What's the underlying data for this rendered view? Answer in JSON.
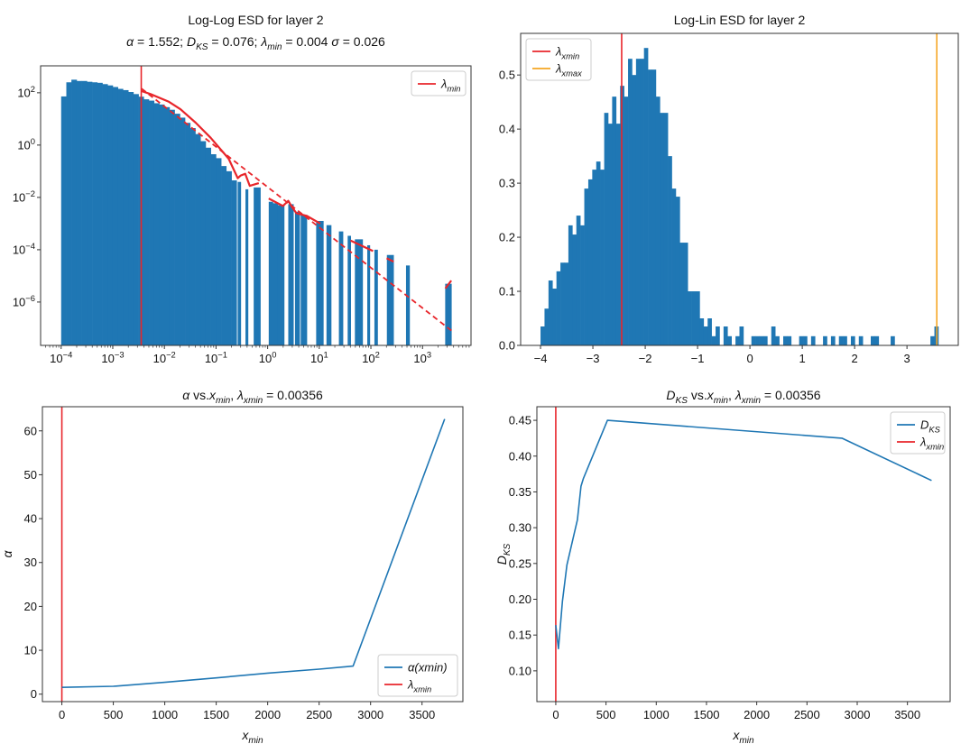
{
  "colors": {
    "blue": "#1f77b4",
    "red": "#e8262b",
    "orange": "#f5a623",
    "spine": "#333333"
  },
  "chart_data": [
    {
      "id": "loglog",
      "type": "bar",
      "title": [
        "Log-Log ESD for layer 2",
        "$α$ = 1.552; $D_{KS}$ = 0.076; $λ_{min}$ = 0.004 $σ$ = 0.026"
      ],
      "xscale": "log",
      "yscale": "log",
      "xlim": [
        4e-05,
        8700
      ],
      "ylim": [
        2.2e-08,
        1070
      ],
      "xticks": [
        0.0001,
        0.001,
        0.01,
        0.1,
        1,
        10,
        100,
        1000
      ],
      "xticklabels": [
        "10^{−4}",
        "10^{−3}",
        "10^{−2}",
        "10^{−1}",
        "10^{0}",
        "10^{1}",
        "10^{2}",
        "10^{3}"
      ],
      "yticks": [
        100.0,
        1,
        0.01,
        0.0001,
        1e-06
      ],
      "yticklabels": [
        "10^{2}",
        "10^{0}",
        "10^{−2}",
        "10^{−4}",
        "10^{−6}"
      ],
      "grid": false,
      "legend": {
        "placement": "top-right",
        "entries": [
          {
            "label": "$λ_{min}$",
            "color": "red"
          }
        ]
      },
      "vline": {
        "x": 0.00356,
        "color": "red"
      },
      "hist_edges": [
        0.0001,
        0.000126,
        0.000158,
        0.0002,
        0.000251,
        0.000316,
        0.000398,
        0.000501,
        0.000631,
        0.000794,
        0.001,
        0.00126,
        0.00158,
        0.002,
        0.00251,
        0.00316,
        0.00398,
        0.00501,
        0.00631,
        0.00794,
        0.01,
        0.0126,
        0.0158,
        0.02,
        0.0251,
        0.0316,
        0.0398,
        0.0501,
        0.0631,
        0.0794,
        0.1,
        0.126,
        0.158,
        0.2,
        0.251
      ],
      "hist_values": [
        72.4,
        251,
        316,
        282,
        282,
        263,
        251,
        240,
        214,
        191,
        166,
        141,
        126,
        107,
        89.1,
        70.8,
        56.2,
        50.1,
        39.8,
        35.5,
        28.2,
        22.4,
        15.8,
        11.2,
        7.08,
        4.47,
        2.63,
        1.41,
        0.794,
        0.447,
        0.316,
        0.158,
        0.1,
        0.0447
      ],
      "sparse_bars": [
        [
          0.263,
          0.302,
          0.039
        ],
        [
          0.372,
          0.417,
          0.0204
        ],
        [
          0.537,
          0.724,
          0.024
        ],
        [
          1.05,
          1.26,
          0.0068
        ],
        [
          1.26,
          1.58,
          0.006
        ],
        [
          1.58,
          2.09,
          0.005
        ],
        [
          2.51,
          3.16,
          0.0055
        ],
        [
          3.39,
          4.17,
          0.0028
        ],
        [
          4.37,
          5.75,
          0.00214
        ],
        [
          8.71,
          12.0,
          0.00126
        ],
        [
          13.8,
          17.0,
          0.00087
        ],
        [
          24.0,
          28.8,
          0.0005
        ],
        [
          35.5,
          40.7,
          0.00034
        ],
        [
          49.0,
          69.2,
          0.00025
        ],
        [
          85.1,
          95.5,
          0.000148
        ],
        [
          117,
          135,
          0.0001
        ],
        [
          204,
          275,
          6.3e-05
        ],
        [
          479,
          562,
          2.5e-05
        ],
        [
          2750,
          3630,
          5e-06
        ]
      ],
      "fit_dashed": [
        [
          0.0036,
          145
        ],
        [
          3630,
          8.1e-08
        ]
      ],
      "fit_curve_segments": [
        [
          [
            0.0036,
            117
          ],
          [
            0.00538,
            89
          ],
          [
            0.012,
            46
          ],
          [
            0.0206,
            23.4
          ],
          [
            0.0403,
            7.2
          ],
          [
            0.0787,
            1.9
          ],
          [
            0.176,
            0.3
          ],
          [
            0.264,
            0.054
          ],
          [
            0.301,
            0.069
          ],
          [
            0.368,
            0.08
          ],
          [
            0.451,
            0.0275
          ],
          [
            0.674,
            0.035
          ]
        ],
        [
          [
            1.05,
            0.0091
          ],
          [
            1.97,
            0.0047
          ],
          [
            2.51,
            0.0074
          ],
          [
            2.95,
            0.0043
          ],
          [
            3.61,
            0.0025
          ],
          [
            5.77,
            0.00195
          ],
          [
            10.5,
            0.001
          ]
        ],
        [
          [
            40.4,
            0.000224
          ],
          [
            110,
            8.91e-05
          ]
        ],
        [
          [
            202,
            4.7e-05
          ],
          [
            275,
            3.5e-05
          ]
        ],
        [
          [
            2770,
            3.3e-06
          ],
          [
            3610,
            6.6e-06
          ]
        ]
      ]
    },
    {
      "id": "loglin",
      "type": "bar",
      "title": [
        "Log-Lin ESD for layer 2"
      ],
      "xscale": "linear",
      "yscale": "linear",
      "xlim": [
        -4.38,
        3.98
      ],
      "ylim": [
        0,
        0.577
      ],
      "xticks": [
        -4,
        -3,
        -2,
        -1,
        0,
        1,
        2,
        3
      ],
      "xticklabels": [
        "−4",
        "−3",
        "−2",
        "−1",
        "0",
        "1",
        "2",
        "3"
      ],
      "yticks": [
        0,
        0.1,
        0.2,
        0.3,
        0.4,
        0.5
      ],
      "yticklabels": [
        "0.0",
        "0.1",
        "0.2",
        "0.3",
        "0.4",
        "0.5"
      ],
      "grid": false,
      "legend": {
        "placement": "top-left",
        "entries": [
          {
            "label": "$λ_{xmin}$",
            "color": "red"
          },
          {
            "label": "$λ_{xmax}$",
            "color": "orange"
          }
        ]
      },
      "vlines": [
        {
          "x": -2.45,
          "color": "red"
        },
        {
          "x": 3.57,
          "color": "orange"
        }
      ],
      "hist_range": [
        -4,
        3.6
      ],
      "hist_values": [
        0.035,
        0.068,
        0.12,
        0.105,
        0.137,
        0.153,
        0.153,
        0.222,
        0.205,
        0.24,
        0.222,
        0.29,
        0.307,
        0.325,
        0.34,
        0.325,
        0.43,
        0.41,
        0.46,
        0.41,
        0.48,
        0.46,
        0.53,
        0.5,
        0.53,
        0.53,
        0.55,
        0.51,
        0.51,
        0.46,
        0.43,
        0.43,
        0.35,
        0.29,
        0.275,
        0.19,
        0.19,
        0.1,
        0.1,
        0.1,
        0.05,
        0.035,
        0.05,
        0.017,
        0.035,
        0,
        0.035,
        0.017,
        0,
        0.017,
        0.035,
        0,
        0,
        0.017,
        0.017,
        0.017,
        0.017,
        0,
        0.035,
        0.017,
        0,
        0.017,
        0.017,
        0,
        0,
        0.017,
        0.017,
        0,
        0.017,
        0,
        0,
        0.017,
        0,
        0.017,
        0,
        0.017,
        0.017,
        0,
        0.017,
        0,
        0.017,
        0,
        0,
        0.017,
        0.017,
        0,
        0,
        0,
        0.017,
        0,
        0,
        0,
        0,
        0,
        0,
        0,
        0,
        0,
        0.017,
        0.035
      ]
    },
    {
      "id": "alpha",
      "type": "line",
      "title": [
        "$α$ vs.$x_{min}$, $λ_{xmin}$ = 0.00356"
      ],
      "xlabel": "$x_{min}$",
      "ylabel": "$α$",
      "xscale": "linear",
      "yscale": "linear",
      "xlim": [
        -189,
        3897
      ],
      "ylim": [
        -1.7,
        65.5
      ],
      "xticks": [
        0,
        500,
        1000,
        1500,
        2000,
        2500,
        3000,
        3500
      ],
      "xticklabels": [
        "0",
        "500",
        "1000",
        "1500",
        "2000",
        "2500",
        "3000",
        "3500"
      ],
      "yticks": [
        0,
        10,
        20,
        30,
        40,
        50,
        60
      ],
      "yticklabels": [
        "0",
        "10",
        "20",
        "30",
        "40",
        "50",
        "60"
      ],
      "grid": false,
      "legend": {
        "placement": "lower-right",
        "entries": [
          {
            "label": "$α(xmin)$",
            "color": "blue"
          },
          {
            "label": "$λ_{xmin}$",
            "color": "red"
          }
        ]
      },
      "vline": {
        "x": 0.00356,
        "color": "red"
      },
      "series": [
        {
          "name": "α(xmin)",
          "x": [
            0.0036,
            500,
            1000,
            1500,
            2000,
            2500,
            2830,
            3720
          ],
          "y": [
            1.55,
            1.8,
            2.7,
            3.7,
            4.8,
            5.7,
            6.4,
            62.7
          ]
        }
      ]
    },
    {
      "id": "dks",
      "type": "line",
      "title": [
        "$D_{KS}$ vs.$x_{min}$, $λ_{xmin}$ = 0.00356"
      ],
      "xlabel": "$x_{min}$",
      "ylabel": "$D_{KS}$",
      "xscale": "linear",
      "yscale": "linear",
      "xlim": [
        -188,
        3925
      ],
      "ylim": [
        0.057,
        0.469
      ],
      "xticks": [
        0,
        500,
        1000,
        1500,
        2000,
        2500,
        3000,
        3500
      ],
      "xticklabels": [
        "0",
        "500",
        "1000",
        "1500",
        "2000",
        "2500",
        "3000",
        "3500"
      ],
      "yticks": [
        0.1,
        0.15,
        0.2,
        0.25,
        0.3,
        0.35,
        0.4,
        0.45
      ],
      "yticklabels": [
        "0.10",
        "0.15",
        "0.20",
        "0.25",
        "0.30",
        "0.35",
        "0.40",
        "0.45"
      ],
      "grid": false,
      "legend": {
        "placement": "upper-right",
        "entries": [
          {
            "label": "$D_{KS}$",
            "color": "blue"
          },
          {
            "label": "$λ_{xmin}$",
            "color": "red"
          }
        ]
      },
      "vline": {
        "x": 0.00356,
        "color": "red"
      },
      "series": [
        {
          "name": "D_KS",
          "x": [
            0,
            27,
            66,
            111,
            215,
            251,
            275,
            514,
            2848,
            3740
          ],
          "y": [
            0.164,
            0.131,
            0.197,
            0.248,
            0.311,
            0.358,
            0.369,
            0.45,
            0.425,
            0.366
          ]
        }
      ]
    }
  ]
}
